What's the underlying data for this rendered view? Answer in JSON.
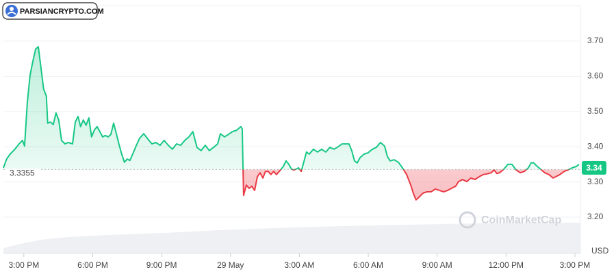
{
  "logo": "PARSIANCRYPTO.COM",
  "chart_data": {
    "type": "line",
    "watermark": "CoinMarketCap",
    "y_axis_label": "USD",
    "baseline": 3.3355,
    "current_price": 3.34,
    "color_up": "#16c784",
    "color_down": "#ea3943",
    "grid": true,
    "xlim": [
      -0.89,
      24.24
    ],
    "ylim": [
      3.15,
      3.8
    ],
    "xticks": [
      {
        "value": 0,
        "label": "3:00 PM"
      },
      {
        "value": 3,
        "label": "6:00 PM"
      },
      {
        "value": 6,
        "label": "9:00 PM"
      },
      {
        "value": 9,
        "label": "29 May"
      },
      {
        "value": 12,
        "label": "3:00 AM"
      },
      {
        "value": 15,
        "label": "6:00 AM"
      },
      {
        "value": 18,
        "label": "9:00 AM"
      },
      {
        "value": 21,
        "label": "12:00 PM"
      },
      {
        "value": 24,
        "label": "3:00 PM"
      }
    ],
    "yticks": [
      {
        "value": 3.2,
        "label": "3.20"
      },
      {
        "value": 3.3,
        "label": "3.30"
      },
      {
        "value": 3.4,
        "label": "3.40"
      },
      {
        "value": 3.5,
        "label": "3.50"
      },
      {
        "value": 3.6,
        "label": "3.60"
      },
      {
        "value": 3.7,
        "label": "3.70"
      }
    ],
    "x": [
      -0.89,
      -0.75,
      -0.6,
      -0.39,
      -0.21,
      -0.06,
      0.03,
      0.15,
      0.27,
      0.39,
      0.51,
      0.63,
      0.75,
      0.86,
      0.98,
      1.04,
      1.16,
      1.28,
      1.4,
      1.52,
      1.64,
      1.79,
      1.94,
      2.12,
      2.24,
      2.36,
      2.47,
      2.59,
      2.71,
      2.83,
      2.95,
      3.07,
      3.19,
      3.31,
      3.43,
      3.55,
      3.67,
      3.79,
      3.91,
      4.03,
      4.14,
      4.26,
      4.38,
      4.5,
      4.62,
      4.74,
      4.86,
      5.04,
      5.22,
      5.4,
      5.58,
      5.75,
      5.93,
      6.11,
      6.29,
      6.47,
      6.65,
      6.83,
      7.01,
      7.19,
      7.36,
      7.54,
      7.72,
      7.9,
      8.08,
      8.26,
      8.44,
      8.56,
      8.74,
      8.91,
      9.09,
      9.27,
      9.45,
      9.51,
      9.57,
      9.69,
      9.81,
      9.93,
      10.05,
      10.17,
      10.29,
      10.41,
      10.52,
      10.64,
      10.76,
      10.88,
      11.0,
      11.18,
      11.3,
      11.42,
      11.54,
      11.66,
      11.78,
      11.96,
      12.08,
      12.19,
      12.31,
      12.43,
      12.61,
      12.79,
      12.97,
      13.15,
      13.33,
      13.51,
      13.69,
      13.86,
      14.04,
      14.16,
      14.28,
      14.4,
      14.52,
      14.64,
      14.82,
      15.0,
      15.18,
      15.35,
      15.53,
      15.71,
      15.83,
      15.95,
      16.13,
      16.31,
      16.49,
      16.67,
      16.85,
      16.96,
      17.08,
      17.2,
      17.38,
      17.56,
      17.74,
      17.92,
      18.1,
      18.28,
      18.46,
      18.63,
      18.81,
      18.93,
      19.11,
      19.29,
      19.47,
      19.65,
      19.83,
      20.01,
      20.18,
      20.36,
      20.48,
      20.6,
      20.72,
      20.9,
      21.08,
      21.26,
      21.44,
      21.62,
      21.8,
      21.97,
      22.09,
      22.21,
      22.33,
      22.51,
      22.69,
      22.87,
      23.05,
      23.17,
      23.35,
      23.53,
      23.7,
      23.88,
      24.06,
      24.18
    ],
    "values": [
      3.34,
      3.365,
      3.379,
      3.393,
      3.408,
      3.418,
      3.402,
      3.525,
      3.603,
      3.642,
      3.677,
      3.684,
      3.622,
      3.564,
      3.544,
      3.467,
      3.47,
      3.463,
      3.496,
      3.476,
      3.418,
      3.408,
      3.412,
      3.408,
      3.47,
      3.486,
      3.457,
      3.476,
      3.461,
      3.482,
      3.428,
      3.447,
      3.457,
      3.443,
      3.428,
      3.432,
      3.428,
      3.435,
      3.467,
      3.437,
      3.408,
      3.379,
      3.356,
      3.365,
      3.361,
      3.379,
      3.398,
      3.424,
      3.437,
      3.422,
      3.408,
      3.412,
      3.404,
      3.418,
      3.404,
      3.393,
      3.408,
      3.404,
      3.418,
      3.428,
      3.443,
      3.398,
      3.389,
      3.404,
      3.389,
      3.398,
      3.408,
      3.437,
      3.428,
      3.435,
      3.443,
      3.447,
      3.457,
      3.451,
      3.262,
      3.291,
      3.282,
      3.288,
      3.276,
      3.315,
      3.326,
      3.311,
      3.33,
      3.33,
      3.321,
      3.33,
      3.321,
      3.334,
      3.344,
      3.36,
      3.35,
      3.336,
      3.334,
      3.34,
      3.33,
      3.356,
      3.385,
      3.379,
      3.393,
      3.385,
      3.393,
      3.385,
      3.398,
      3.393,
      3.4,
      3.408,
      3.408,
      3.408,
      3.389,
      3.36,
      3.354,
      3.369,
      3.379,
      3.383,
      3.393,
      3.398,
      3.412,
      3.402,
      3.373,
      3.36,
      3.363,
      3.356,
      3.34,
      3.321,
      3.291,
      3.268,
      3.249,
      3.256,
      3.268,
      3.272,
      3.272,
      3.28,
      3.276,
      3.272,
      3.276,
      3.282,
      3.288,
      3.301,
      3.307,
      3.301,
      3.311,
      3.307,
      3.315,
      3.321,
      3.323,
      3.326,
      3.334,
      3.324,
      3.326,
      3.336,
      3.35,
      3.35,
      3.334,
      3.326,
      3.33,
      3.34,
      3.354,
      3.354,
      3.346,
      3.336,
      3.326,
      3.321,
      3.311,
      3.315,
      3.321,
      3.33,
      3.334,
      3.34,
      3.344,
      3.35
    ]
  }
}
